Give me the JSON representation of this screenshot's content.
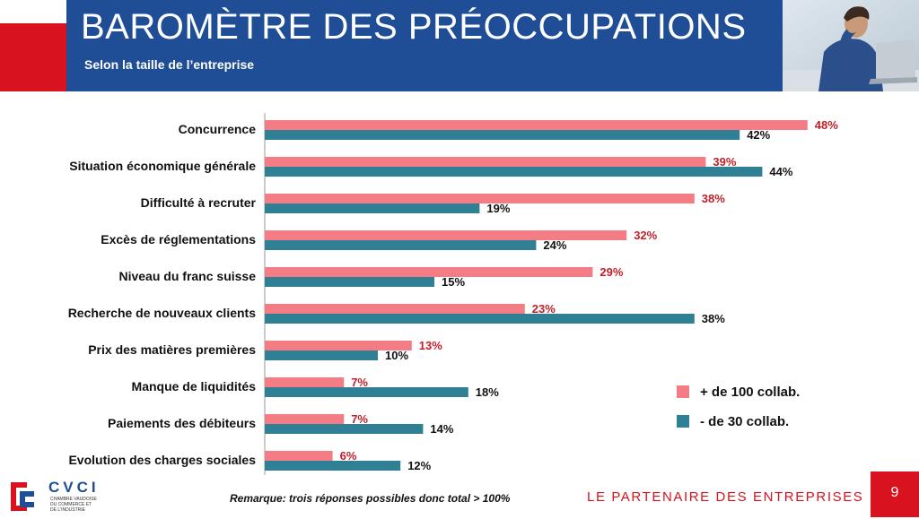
{
  "header": {
    "title": "BAROMÈTRE DES PRÉOCCUPATIONS",
    "subtitle": "Selon la taille de l’entreprise"
  },
  "chart_data": {
    "type": "bar",
    "orientation": "horizontal",
    "categories": [
      "Concurrence",
      "Situation économique générale",
      "Difficulté à recruter",
      "Excès de réglementations",
      "Niveau du franc suisse",
      "Recherche de nouveaux clients",
      "Prix des matières premières",
      "Manque de liquidités",
      "Paiements des débiteurs",
      "Evolution des charges sociales"
    ],
    "series": [
      {
        "name": "+ de 100 collab.",
        "values": [
          48,
          39,
          38,
          32,
          29,
          23,
          13,
          7,
          7,
          6
        ],
        "color": "#f47d85",
        "label_color": "#c0202a"
      },
      {
        "name": "- de 30 collab.",
        "values": [
          42,
          44,
          19,
          24,
          15,
          38,
          10,
          18,
          14,
          12
        ],
        "color": "#2f7f95",
        "label_color": "#111111"
      }
    ],
    "value_suffix": "%",
    "grid": false,
    "legend_position": "bottom-right"
  },
  "footer": {
    "logo": {
      "name": "CVCI",
      "line1": "CHAMBRE VAUDOISE",
      "line2": "DU COMMERCE ET",
      "line3": "DE L'INDUSTRIE"
    },
    "remark": "Remarque: trois réponses possibles donc total > 100%",
    "tagline": "LE PARTENAIRE DES ENTREPRISES",
    "page_number": "9"
  },
  "colors": {
    "brand_red": "#d8121f",
    "brand_blue": "#1f4e97"
  }
}
